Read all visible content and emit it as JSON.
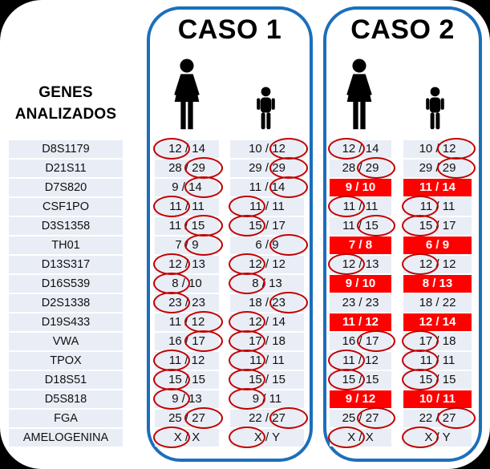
{
  "colors": {
    "frame_bg": "#000000",
    "sheet_bg": "#FFFFFF",
    "panel_border": "#1B6FBC",
    "row_bg": "#E9EDF5",
    "highlight_bg": "#FF0000",
    "highlight_text": "#FFFFFF",
    "circle_stroke": "#C00000",
    "text": "#000000"
  },
  "genes_panel": {
    "header": [
      "GENES",
      "ANALIZADOS"
    ],
    "genes": [
      "D8S1179",
      "D21S11",
      "D7S820",
      "CSF1PO",
      "D3S1358",
      "TH01",
      "D13S317",
      "D16S539",
      "D2S1338",
      "D19S433",
      "VWA",
      "TPOX",
      "D18S51",
      "D5S818",
      "FGA",
      "AMELOGENINA"
    ]
  },
  "cases": [
    {
      "title": "CASO 1",
      "rows": [
        {
          "mother": "12 / 14",
          "mother_circle": "left",
          "child": "10 / 12",
          "child_circle": "right",
          "highlight": false
        },
        {
          "mother": "28 / 29",
          "mother_circle": "right",
          "child": "29 / 29",
          "child_circle": "right",
          "highlight": false
        },
        {
          "mother": "9 / 14",
          "mother_circle": "right",
          "child": "11 / 14",
          "child_circle": "right",
          "highlight": false
        },
        {
          "mother": "11 / 11",
          "mother_circle": "left",
          "child": "11 / 11",
          "child_circle": "left",
          "highlight": false
        },
        {
          "mother": "11 / 15",
          "mother_circle": "right",
          "child": "15 / 17",
          "child_circle": "left",
          "highlight": false
        },
        {
          "mother": "7 / 9",
          "mother_circle": "right",
          "child": "6 / 9",
          "child_circle": "right",
          "highlight": false
        },
        {
          "mother": "12 / 13",
          "mother_circle": "left",
          "child": "12 / 12",
          "child_circle": "left",
          "highlight": false
        },
        {
          "mother": "8 / 10",
          "mother_circle": "left",
          "child": "8 / 13",
          "child_circle": "left",
          "highlight": false
        },
        {
          "mother": "23 / 23",
          "mother_circle": "left",
          "child": "18 / 23",
          "child_circle": "right",
          "highlight": false
        },
        {
          "mother": "11 / 12",
          "mother_circle": "right",
          "child": "12 / 14",
          "child_circle": "left",
          "highlight": false
        },
        {
          "mother": "16 / 17",
          "mother_circle": "right",
          "child": "17 / 18",
          "child_circle": "left",
          "highlight": false
        },
        {
          "mother": "11 / 12",
          "mother_circle": "left",
          "child": "11 / 11",
          "child_circle": "left",
          "highlight": false
        },
        {
          "mother": "15 / 15",
          "mother_circle": "left",
          "child": "15 / 15",
          "child_circle": "left",
          "highlight": false
        },
        {
          "mother": "9 / 13",
          "mother_circle": "left",
          "child": "9 / 11",
          "child_circle": "left",
          "highlight": false
        },
        {
          "mother": "25 / 27",
          "mother_circle": "right",
          "child": "22 / 27",
          "child_circle": "right",
          "highlight": false
        },
        {
          "mother": "X / X",
          "mother_circle": "left",
          "child": "X / Y",
          "child_circle": "left",
          "highlight": false
        }
      ]
    },
    {
      "title": "CASO 2",
      "rows": [
        {
          "mother": "12 / 14",
          "mother_circle": "left",
          "child": "10 / 12",
          "child_circle": "right",
          "highlight": false
        },
        {
          "mother": "28 / 29",
          "mother_circle": "right",
          "child": "29 / 29",
          "child_circle": "right",
          "highlight": false
        },
        {
          "mother": "9 / 10",
          "mother_circle": "none",
          "child": "11 / 14",
          "child_circle": "none",
          "highlight": true
        },
        {
          "mother": "11 / 11",
          "mother_circle": "left",
          "child": "11 / 11",
          "child_circle": "left",
          "highlight": false
        },
        {
          "mother": "11 / 15",
          "mother_circle": "right",
          "child": "15 / 17",
          "child_circle": "left",
          "highlight": false
        },
        {
          "mother": "7 / 8",
          "mother_circle": "none",
          "child": "6 / 9",
          "child_circle": "none",
          "highlight": true
        },
        {
          "mother": "12 / 13",
          "mother_circle": "left",
          "child": "12 / 12",
          "child_circle": "left",
          "highlight": false
        },
        {
          "mother": "9 / 10",
          "mother_circle": "none",
          "child": "8 / 13",
          "child_circle": "none",
          "highlight": true
        },
        {
          "mother": "23 / 23",
          "mother_circle": "none",
          "child": "18 / 22",
          "child_circle": "none",
          "highlight": false
        },
        {
          "mother": "11 / 12",
          "mother_circle": "none",
          "child": "12 / 14",
          "child_circle": "none",
          "highlight": true
        },
        {
          "mother": "16 / 17",
          "mother_circle": "right",
          "child": "17 / 18",
          "child_circle": "left",
          "highlight": false
        },
        {
          "mother": "11 / 12",
          "mother_circle": "left",
          "child": "11 / 11",
          "child_circle": "left",
          "highlight": false
        },
        {
          "mother": "15 / 15",
          "mother_circle": "left",
          "child": "15 / 15",
          "child_circle": "left",
          "highlight": false
        },
        {
          "mother": "9 / 12",
          "mother_circle": "none",
          "child": "10 / 11",
          "child_circle": "none",
          "highlight": true
        },
        {
          "mother": "25 / 27",
          "mother_circle": "right",
          "child": "22 / 27",
          "child_circle": "right",
          "highlight": false
        },
        {
          "mother": "X / X",
          "mother_circle": "left",
          "child": "X / Y",
          "child_circle": "left",
          "highlight": false
        }
      ]
    }
  ]
}
